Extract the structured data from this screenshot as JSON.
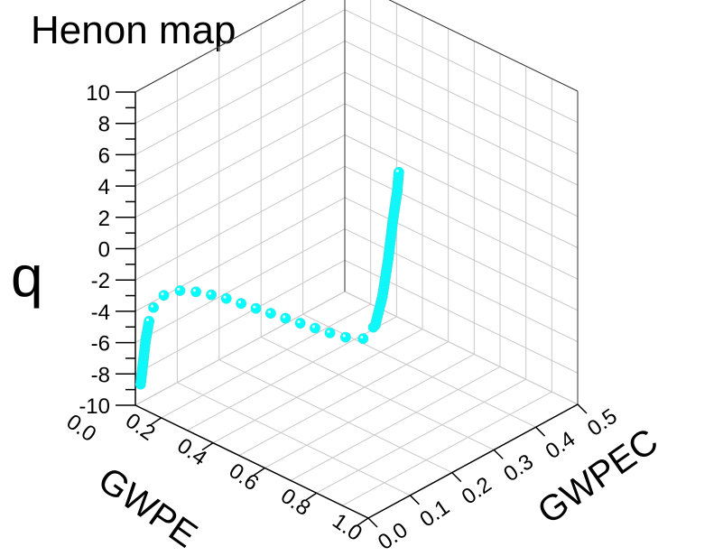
{
  "chart_data": {
    "type": "scatter",
    "title": "Henon map",
    "xlabel": "GWPE",
    "ylabel": "GWPEC",
    "zlabel": "q",
    "xlim": [
      0.1,
      1.0
    ],
    "ylim": [
      0.0,
      0.5
    ],
    "zlim": [
      -10,
      10
    ],
    "x_ticks": [
      "0.0",
      "0.2",
      "0.4",
      "0.6",
      "0.8",
      "1.0"
    ],
    "y_ticks": [
      "0.0",
      "0.1",
      "0.2",
      "0.3",
      "0.4",
      "0.5"
    ],
    "z_ticks": [
      "10",
      "8",
      "6",
      "4",
      "2",
      "0",
      "-2",
      "-4",
      "-6",
      "-8",
      "-10"
    ],
    "grid": true,
    "marker_color": "#00ffff",
    "points": [
      {
        "x": 0.12,
        "y": 0.0,
        "z": -8.5
      },
      {
        "x": 0.13,
        "y": 0.0,
        "z": -7.0
      },
      {
        "x": 0.14,
        "y": 0.0,
        "z": -5.5
      },
      {
        "x": 0.155,
        "y": 0.0,
        "z": -4.0
      },
      {
        "x": 0.17,
        "y": 0.0,
        "z": -3.2
      },
      {
        "x": 0.19,
        "y": 0.0,
        "z": -2.5
      },
      {
        "x": 0.22,
        "y": 0.0,
        "z": -1.9
      },
      {
        "x": 0.26,
        "y": 0.0,
        "z": -1.4
      },
      {
        "x": 0.31,
        "y": 0.0,
        "z": -1.0
      },
      {
        "x": 0.37,
        "y": 0.0,
        "z": -0.7
      },
      {
        "x": 0.44,
        "y": 0.0,
        "z": -0.4
      },
      {
        "x": 0.52,
        "y": 0.0,
        "z": -0.2
      },
      {
        "x": 0.6,
        "y": 0.0,
        "z": 0.0
      },
      {
        "x": 0.68,
        "y": 0.0,
        "z": 0.2
      },
      {
        "x": 0.76,
        "y": 0.0,
        "z": 0.4
      },
      {
        "x": 0.84,
        "y": 0.0,
        "z": 0.6
      },
      {
        "x": 0.9,
        "y": 0.0,
        "z": 0.8
      },
      {
        "x": 0.95,
        "y": 0.0,
        "z": 1.0
      },
      {
        "x": 0.98,
        "y": 0.0,
        "z": 1.3
      },
      {
        "x": 0.995,
        "y": 0.02,
        "z": 2.0
      },
      {
        "x": 0.99,
        "y": 0.04,
        "z": 3.5
      },
      {
        "x": 0.98,
        "y": 0.06,
        "z": 5.5
      },
      {
        "x": 0.965,
        "y": 0.08,
        "z": 7.5
      },
      {
        "x": 0.95,
        "y": 0.1,
        "z": 9.0
      },
      {
        "x": 0.94,
        "y": 0.11,
        "z": 10.0
      }
    ]
  }
}
